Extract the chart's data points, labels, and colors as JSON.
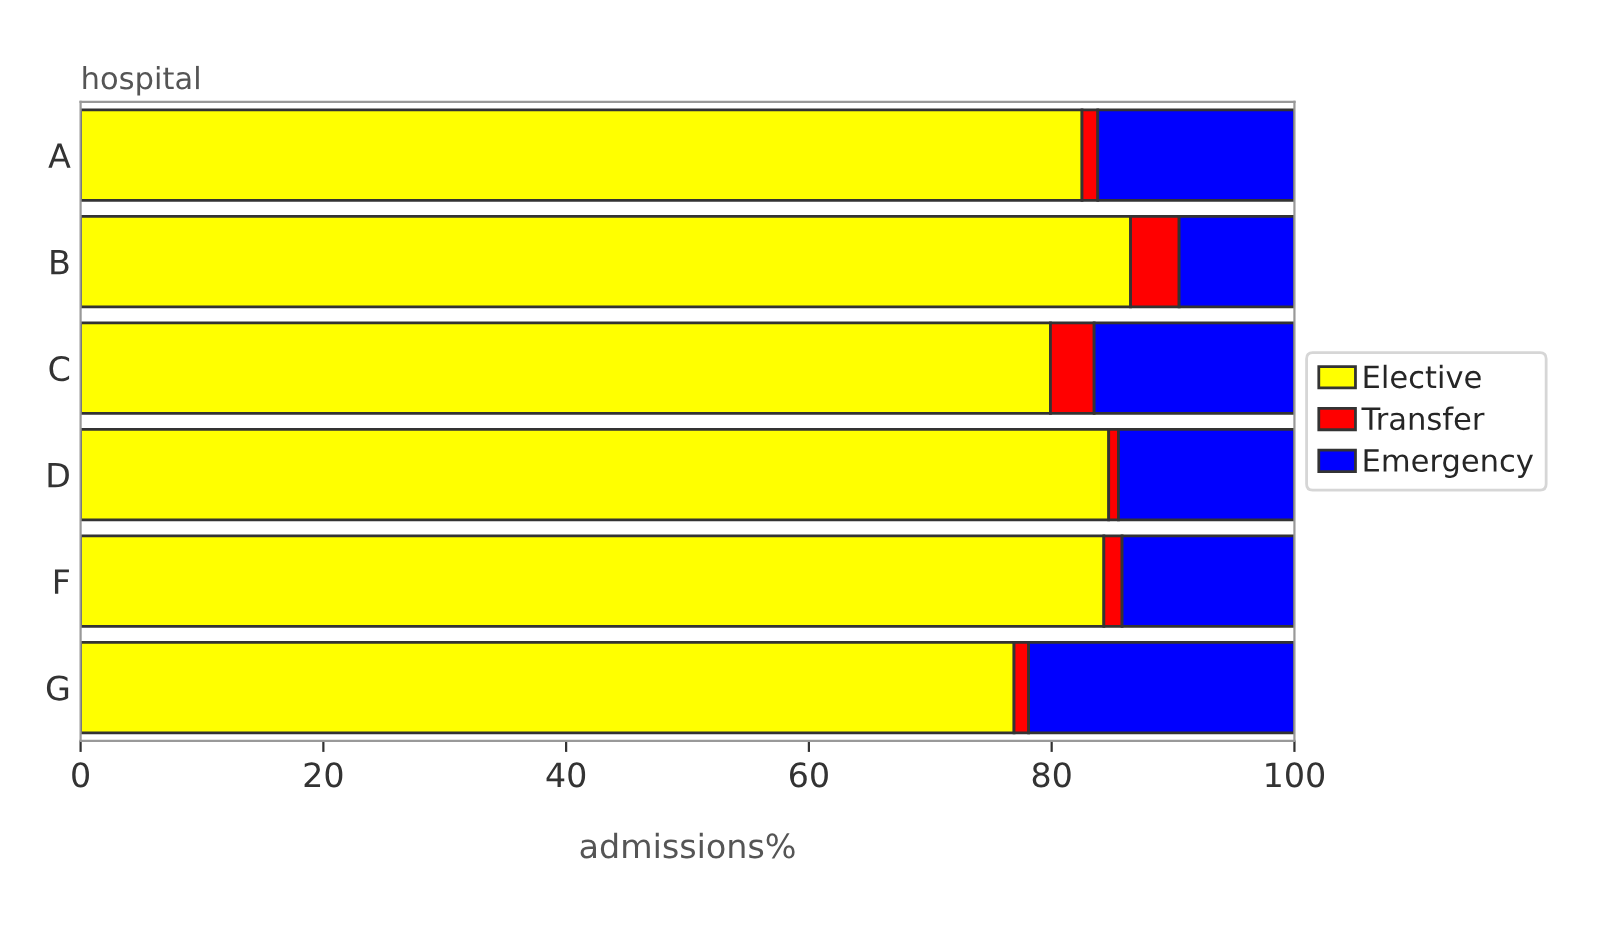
{
  "chart_data": {
    "type": "bar",
    "orientation": "horizontal",
    "stacked": true,
    "ylabel": "hospital",
    "xlabel": "admissions%",
    "categories": [
      "A",
      "B",
      "C",
      "D",
      "F",
      "G"
    ],
    "series": [
      {
        "name": "Elective",
        "color": "#ffff00",
        "values": [
          82.5,
          86.5,
          79.9,
          84.7,
          84.3,
          76.9
        ]
      },
      {
        "name": "Transfer",
        "color": "#ff0000",
        "values": [
          1.3,
          4.0,
          3.6,
          0.8,
          1.5,
          1.2
        ]
      },
      {
        "name": "Emergency",
        "color": "#0000ff",
        "values": [
          16.2,
          9.5,
          16.5,
          14.5,
          14.2,
          21.9
        ]
      }
    ],
    "xlim": [
      0,
      100
    ],
    "xticks": [
      0,
      20,
      40,
      60,
      80,
      100
    ],
    "legend": "right"
  }
}
